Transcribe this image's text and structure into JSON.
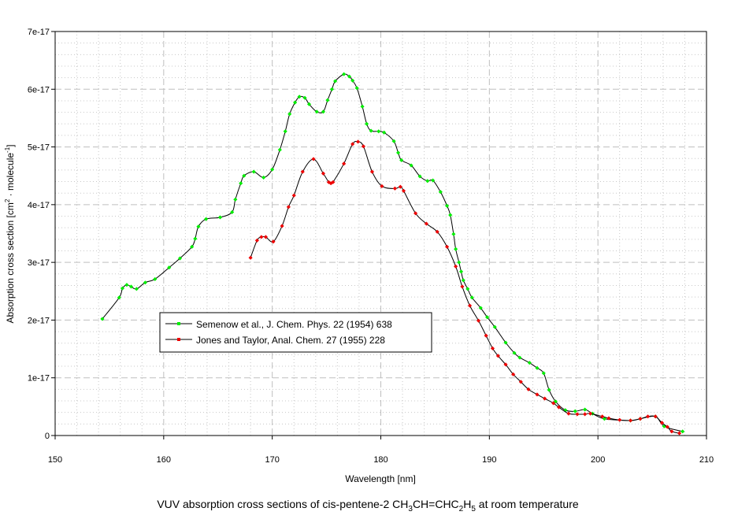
{
  "chart_data": {
    "type": "line",
    "title": "VUV absorption cross sections of cis-pentene-2 CH3CH=CHC2H5 at room temperature",
    "title_parts": {
      "pre": "VUV absorption cross sections of cis-pentene-2 CH",
      "s1": "3",
      "mid": "CH=CHC",
      "s2": "2",
      "mid2": "H",
      "s3": "5",
      "post": " at room temperature"
    },
    "xlabel": "Wavelength [nm]",
    "ylabel_parts": {
      "pre": "Absorption cross section [cm",
      "sup1": "2",
      "mid": " · molecule",
      "sup2": "-1",
      "post": "]"
    },
    "xlim": [
      150,
      210
    ],
    "ylim": [
      0,
      7e-17
    ],
    "xticks": [
      "150",
      "160",
      "170",
      "180",
      "190",
      "200",
      "210"
    ],
    "yticks": [
      "0",
      "1e-17",
      "2e-17",
      "3e-17",
      "4e-17",
      "5e-17",
      "6e-17",
      "7e-17"
    ],
    "grid": true,
    "legend_position": "center-left",
    "series": [
      {
        "name": "Semenow et al., J. Chem. Phys. 22 (1954) 638",
        "marker_color": "#00ee00",
        "line_color": "#000000",
        "x": [
          154.35,
          155.9,
          156.2,
          156.6,
          157.0,
          157.5,
          158.3,
          159.2,
          160.5,
          161.5,
          162.6,
          162.9,
          163.2,
          163.9,
          165.2,
          166.3,
          166.6,
          167.1,
          167.4,
          168.3,
          169.2,
          170.0,
          170.7,
          171.2,
          171.6,
          172.1,
          172.5,
          173.0,
          173.4,
          174.1,
          174.7,
          175.1,
          175.5,
          175.8,
          176.6,
          177.1,
          177.4,
          177.8,
          178.3,
          178.7,
          179.1,
          179.8,
          180.3,
          181.2,
          181.6,
          181.9,
          182.8,
          183.6,
          184.3,
          184.8,
          185.5,
          186.1,
          186.4,
          186.7,
          186.9,
          187.2,
          187.4,
          187.6,
          188.0,
          188.4,
          189.2,
          189.8,
          190.5,
          191.5,
          192.3,
          192.8,
          193.7,
          194.4,
          195.0,
          195.5,
          196.1,
          197.0,
          197.9,
          198.8,
          199.5,
          200.6,
          203.0,
          203.9,
          205.3,
          206.1,
          207.8
        ],
        "y": [
          2.02e-17,
          2.39e-17,
          2.55e-17,
          2.61e-17,
          2.58e-17,
          2.54e-17,
          2.65e-17,
          2.71e-17,
          2.91e-17,
          3.07e-17,
          3.27e-17,
          3.41e-17,
          3.62e-17,
          3.75e-17,
          3.78e-17,
          3.87e-17,
          4.09e-17,
          4.37e-17,
          4.5e-17,
          4.57e-17,
          4.47e-17,
          4.61e-17,
          4.95e-17,
          5.27e-17,
          5.57e-17,
          5.77e-17,
          5.87e-17,
          5.85e-17,
          5.74e-17,
          5.61e-17,
          5.61e-17,
          5.81e-17,
          6e-17,
          6.14e-17,
          6.26e-17,
          6.22e-17,
          6.15e-17,
          6.02e-17,
          5.7e-17,
          5.4e-17,
          5.28e-17,
          5.27e-17,
          5.25e-17,
          5.1e-17,
          4.9e-17,
          4.77e-17,
          4.68e-17,
          4.49e-17,
          4.41e-17,
          4.42e-17,
          4.22e-17,
          3.98e-17,
          3.82e-17,
          3.49e-17,
          3.23e-17,
          3e-17,
          2.84e-17,
          2.69e-17,
          2.54e-17,
          2.39e-17,
          2.21e-17,
          2.05e-17,
          1.88e-17,
          1.61e-17,
          1.43e-17,
          1.35e-17,
          1.26e-17,
          1.17e-17,
          1.08e-17,
          7.9e-18,
          5.9e-18,
          4.4e-18,
          4.2e-18,
          4.5e-18,
          3.8e-18,
          2.9e-18,
          2.6e-18,
          2.9e-18,
          3.3e-18,
          1.6e-18,
          7e-19
        ]
      },
      {
        "name": "Jones and Taylor, Anal. Chem. 27 (1955) 228",
        "marker_color": "#ee0000",
        "line_color": "#000000",
        "x": [
          168.0,
          168.6,
          169.0,
          169.4,
          170.1,
          170.9,
          171.5,
          172.0,
          172.8,
          173.8,
          174.7,
          175.2,
          175.4,
          175.6,
          176.6,
          177.4,
          177.9,
          178.4,
          179.2,
          180.1,
          181.3,
          181.8,
          182.1,
          183.2,
          184.2,
          185.2,
          186.1,
          186.9,
          187.5,
          188.2,
          189.0,
          189.7,
          190.3,
          190.8,
          191.5,
          192.2,
          192.9,
          193.6,
          194.4,
          195.1,
          195.9,
          196.4,
          197.3,
          198.1,
          198.8,
          199.3,
          200.4,
          201.0,
          202.0,
          203.0,
          203.9,
          204.6,
          205.3,
          205.9,
          206.4,
          206.8,
          207.5
        ],
        "y": [
          3.08e-17,
          3.38e-17,
          3.44e-17,
          3.44e-17,
          3.36e-17,
          3.63e-17,
          3.96e-17,
          4.16e-17,
          4.57e-17,
          4.79e-17,
          4.54e-17,
          4.39e-17,
          4.37e-17,
          4.39e-17,
          4.71e-17,
          5.05e-17,
          5.09e-17,
          5.01e-17,
          4.57e-17,
          4.32e-17,
          4.28e-17,
          4.31e-17,
          4.24e-17,
          3.85e-17,
          3.67e-17,
          3.53e-17,
          3.27e-17,
          2.93e-17,
          2.58e-17,
          2.25e-17,
          1.99e-17,
          1.73e-17,
          1.51e-17,
          1.38e-17,
          1.23e-17,
          1.06e-17,
          9.3e-18,
          8e-18,
          7.1e-18,
          6.4e-18,
          5.6e-18,
          4.9e-18,
          3.8e-18,
          3.7e-18,
          3.7e-18,
          3.8e-18,
          3.3e-18,
          3e-18,
          2.7e-18,
          2.6e-18,
          2.9e-18,
          3.3e-18,
          3.3e-18,
          2.2e-18,
          1.5e-18,
          7e-19,
          4e-19
        ]
      }
    ]
  }
}
